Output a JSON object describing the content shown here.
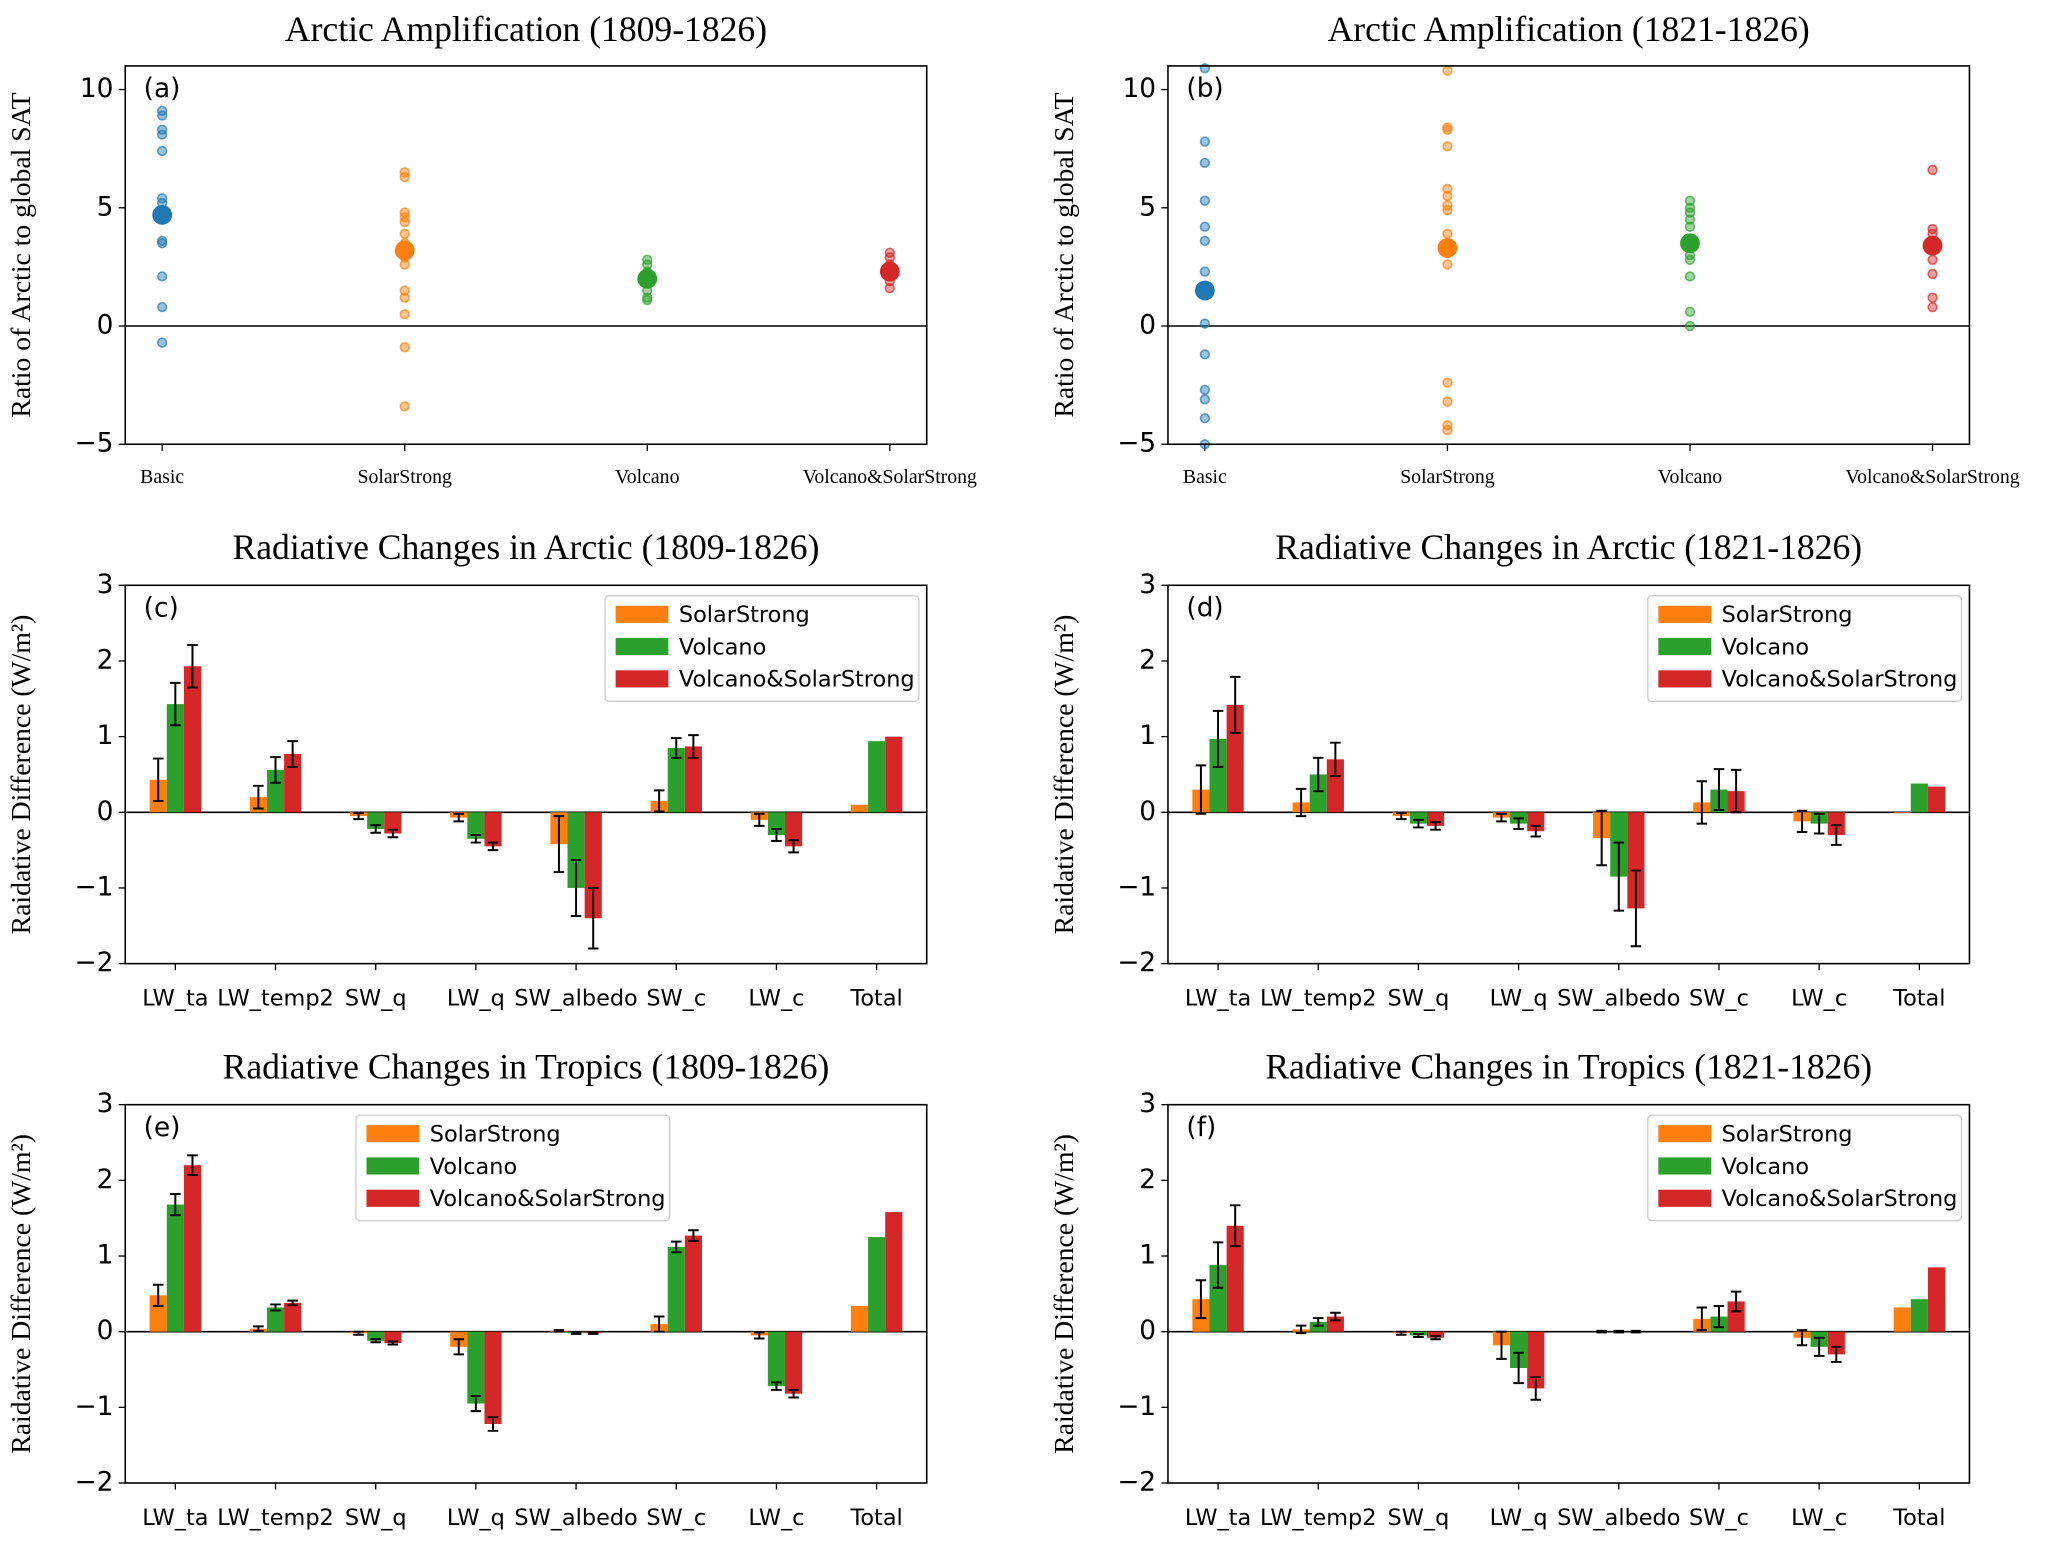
{
  "chart_data": [
    {
      "type": "strip",
      "title": "Arctic Amplification (1809-1826)",
      "panel_label": "(a)",
      "ylabel": "Ratio of Arctic to global SAT",
      "ylim": [
        -5,
        11
      ],
      "yticks": [
        {
          "value": -5,
          "label": "−5"
        },
        0,
        5,
        10
      ],
      "categories": [
        "Basic",
        "SolarStrong",
        "Volcano",
        "Volcano&SolarStrong"
      ],
      "colors": [
        "#1f77b4",
        "#ff7f0e",
        "#2ca02c",
        "#d62728"
      ],
      "points": [
        [
          9.1,
          8.9,
          8.3,
          8.1,
          7.4,
          5.4,
          5.2,
          3.6,
          3.5,
          2.1,
          0.8,
          -0.7
        ],
        [
          6.5,
          6.3,
          4.8,
          4.6,
          4.4,
          3.9,
          3.5,
          2.9,
          2.6,
          1.5,
          1.2,
          0.5,
          -0.9,
          -3.4
        ],
        [
          2.8,
          2.6,
          2.3,
          2.1,
          1.8,
          1.5,
          1.2,
          1.1
        ],
        [
          3.1,
          2.9,
          2.6,
          2.2,
          1.9,
          1.6
        ]
      ],
      "means": [
        4.7,
        3.2,
        2.0,
        2.3
      ]
    },
    {
      "type": "strip",
      "title": "Arctic Amplification (1821-1826)",
      "panel_label": "(b)",
      "ylabel": "Ratio of Arctic to global SAT",
      "ylim": [
        -5,
        11
      ],
      "yticks": [
        {
          "value": -5,
          "label": "−5"
        },
        0,
        5,
        10
      ],
      "categories": [
        "Basic",
        "SolarStrong",
        "Volcano",
        "Volcano&SolarStrong"
      ],
      "colors": [
        "#1f77b4",
        "#ff7f0e",
        "#2ca02c",
        "#d62728"
      ],
      "points": [
        [
          10.9,
          7.8,
          6.9,
          5.3,
          4.2,
          3.6,
          2.3,
          1.6,
          1.3,
          0.1,
          -1.2,
          -2.7,
          -3.1,
          -3.9,
          -5.0
        ],
        [
          10.8,
          8.4,
          8.3,
          7.6,
          5.8,
          5.5,
          5.1,
          4.9,
          3.9,
          2.6,
          -2.4,
          -3.2,
          -4.2,
          -4.4
        ],
        [
          5.3,
          5.0,
          4.8,
          4.5,
          4.2,
          3.0,
          2.8,
          2.1,
          0.6,
          0.0
        ],
        [
          6.6,
          4.1,
          3.9,
          2.8,
          2.2,
          1.2,
          0.8
        ]
      ],
      "means": [
        1.5,
        3.3,
        3.5,
        3.4
      ]
    },
    {
      "type": "bar",
      "title": "Radiative Changes in Arctic (1809-1826)",
      "panel_label": "(c)",
      "ylabel": "Raidative Difference (W/m²)",
      "ylim": [
        -2,
        3
      ],
      "yticks": [
        {
          "value": -2,
          "label": "−2"
        },
        {
          "value": -1,
          "label": "−1"
        },
        0,
        1,
        2,
        3
      ],
      "legend": "upper right",
      "categories": [
        "LW_ta",
        "LW_temp2",
        "SW_q",
        "LW_q",
        "SW_albedo",
        "SW_c",
        "LW_c",
        "Total"
      ],
      "series": [
        {
          "name": "SolarStrong",
          "color": "#ff7f0e",
          "values": [
            0.43,
            0.2,
            -0.05,
            -0.07,
            -0.42,
            0.15,
            -0.1,
            0.1
          ],
          "errors": [
            0.28,
            0.15,
            0.04,
            0.05,
            0.37,
            0.14,
            0.08,
            null
          ]
        },
        {
          "name": "Volcano",
          "color": "#2ca02c",
          "values": [
            1.43,
            0.56,
            -0.22,
            -0.35,
            -1.0,
            0.85,
            -0.3,
            0.94
          ],
          "errors": [
            0.28,
            0.17,
            0.05,
            0.05,
            0.37,
            0.13,
            0.08,
            null
          ]
        },
        {
          "name": "Volcano&SolarStrong",
          "color": "#d62728",
          "values": [
            1.93,
            0.77,
            -0.28,
            -0.45,
            -1.4,
            0.87,
            -0.45,
            1.0
          ],
          "errors": [
            0.28,
            0.17,
            0.05,
            0.05,
            0.4,
            0.15,
            0.08,
            null
          ]
        }
      ]
    },
    {
      "type": "bar",
      "title": "Radiative Changes in Arctic (1821-1826)",
      "panel_label": "(d)",
      "ylabel": "Raidative Difference (W/m²)",
      "ylim": [
        -2,
        3
      ],
      "yticks": [
        {
          "value": -2,
          "label": "−2"
        },
        {
          "value": -1,
          "label": "−1"
        },
        0,
        1,
        2,
        3
      ],
      "legend": "upper right",
      "categories": [
        "LW_ta",
        "LW_temp2",
        "SW_q",
        "LW_q",
        "SW_albedo",
        "SW_c",
        "LW_c",
        "Total"
      ],
      "series": [
        {
          "name": "SolarStrong",
          "color": "#ff7f0e",
          "values": [
            0.3,
            0.13,
            -0.05,
            -0.07,
            -0.34,
            0.13,
            -0.12,
            -0.01
          ],
          "errors": [
            0.32,
            0.18,
            0.04,
            0.05,
            0.36,
            0.28,
            0.14,
            null
          ]
        },
        {
          "name": "Volcano",
          "color": "#2ca02c",
          "values": [
            0.97,
            0.5,
            -0.15,
            -0.15,
            -0.85,
            0.3,
            -0.15,
            0.38
          ],
          "errors": [
            0.37,
            0.22,
            0.05,
            0.07,
            0.45,
            0.27,
            0.13,
            null
          ]
        },
        {
          "name": "Volcano&SolarStrong",
          "color": "#d62728",
          "values": [
            1.42,
            0.7,
            -0.18,
            -0.25,
            -1.27,
            0.28,
            -0.3,
            0.34
          ],
          "errors": [
            0.37,
            0.22,
            0.05,
            0.07,
            0.5,
            0.28,
            0.13,
            null
          ]
        }
      ]
    },
    {
      "type": "bar",
      "title": "Radiative Changes in Tropics (1809-1826)",
      "panel_label": "(e)",
      "ylabel": "Raidative Difference (W/m²)",
      "ylim": [
        -2,
        3
      ],
      "yticks": [
        {
          "value": -2,
          "label": "−2"
        },
        {
          "value": -1,
          "label": "−1"
        },
        0,
        1,
        2,
        3
      ],
      "legend": "upper center",
      "categories": [
        "LW_ta",
        "LW_temp2",
        "SW_q",
        "LW_q",
        "SW_albedo",
        "SW_c",
        "LW_c",
        "Total"
      ],
      "series": [
        {
          "name": "SolarStrong",
          "color": "#ff7f0e",
          "values": [
            0.48,
            0.04,
            -0.02,
            -0.2,
            0.01,
            0.1,
            -0.05,
            0.34
          ],
          "errors": [
            0.14,
            0.03,
            0.02,
            0.1,
            0.01,
            0.1,
            0.04,
            null
          ]
        },
        {
          "name": "Volcano",
          "color": "#2ca02c",
          "values": [
            1.68,
            0.32,
            -0.12,
            -0.95,
            -0.02,
            1.12,
            -0.72,
            1.25
          ],
          "errors": [
            0.14,
            0.04,
            0.02,
            0.1,
            0.01,
            0.07,
            0.05,
            null
          ]
        },
        {
          "name": "Volcano&SolarStrong",
          "color": "#d62728",
          "values": [
            2.2,
            0.38,
            -0.15,
            -1.22,
            -0.02,
            1.27,
            -0.82,
            1.58
          ],
          "errors": [
            0.13,
            0.03,
            0.02,
            0.09,
            0.01,
            0.07,
            0.05,
            null
          ]
        }
      ]
    },
    {
      "type": "bar",
      "title": "Radiative Changes in Tropics (1821-1826)",
      "panel_label": "(f)",
      "ylabel": "Raidative Difference (W/m²)",
      "ylim": [
        -2,
        3
      ],
      "yticks": [
        {
          "value": -2,
          "label": "−2"
        },
        {
          "value": -1,
          "label": "−1"
        },
        0,
        1,
        2,
        3
      ],
      "legend": "upper right",
      "categories": [
        "LW_ta",
        "LW_temp2",
        "SW_q",
        "LW_q",
        "SW_albedo",
        "SW_c",
        "LW_c",
        "Total"
      ],
      "series": [
        {
          "name": "SolarStrong",
          "color": "#ff7f0e",
          "values": [
            0.43,
            0.03,
            -0.02,
            -0.18,
            0.0,
            0.17,
            -0.08,
            0.32
          ],
          "errors": [
            0.25,
            0.05,
            0.02,
            0.18,
            0.01,
            0.15,
            0.1,
            null
          ]
        },
        {
          "name": "Volcano",
          "color": "#2ca02c",
          "values": [
            0.88,
            0.13,
            -0.05,
            -0.48,
            0.0,
            0.2,
            -0.2,
            0.43
          ],
          "errors": [
            0.3,
            0.05,
            0.02,
            0.2,
            0.01,
            0.14,
            0.12,
            null
          ]
        },
        {
          "name": "Volcano&SolarStrong",
          "color": "#d62728",
          "values": [
            1.4,
            0.2,
            -0.08,
            -0.75,
            0.0,
            0.4,
            -0.3,
            0.85
          ],
          "errors": [
            0.27,
            0.05,
            0.02,
            0.15,
            0.01,
            0.13,
            0.1,
            null
          ]
        }
      ]
    }
  ]
}
